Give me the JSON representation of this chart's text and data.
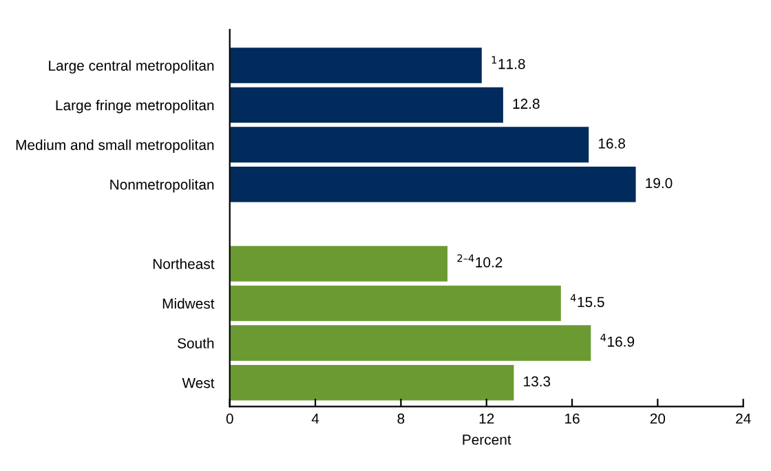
{
  "chart_data": {
    "type": "bar",
    "orientation": "horizontal",
    "xlabel": "Percent",
    "categories": [
      "Large central metropolitan",
      "Large fringe metropolitan",
      "Medium and small metropolitan",
      "Nonmetropolitan",
      null,
      "Northeast",
      "Midwest",
      "South",
      "West"
    ],
    "values": [
      11.8,
      12.8,
      16.8,
      19.0,
      null,
      10.2,
      15.5,
      16.9,
      13.3
    ],
    "colors": [
      "#002b5c",
      "#002b5c",
      "#002b5c",
      "#002b5c",
      "#002b5c",
      "#6b9a33",
      "#6b9a33",
      "#6b9a33",
      "#6b9a33"
    ],
    "value_labels": [
      "$^{1}$11.8",
      "12.8",
      "16.8",
      "19.0",
      null,
      "$^{2–4}$10.2",
      "$^{4}$15.5",
      "$^{4}$16.9",
      "13.3"
    ],
    "xlim": [
      0,
      24
    ],
    "xticks": [
      0,
      4,
      8,
      12,
      16,
      20,
      24
    ],
    "grid": false
  }
}
